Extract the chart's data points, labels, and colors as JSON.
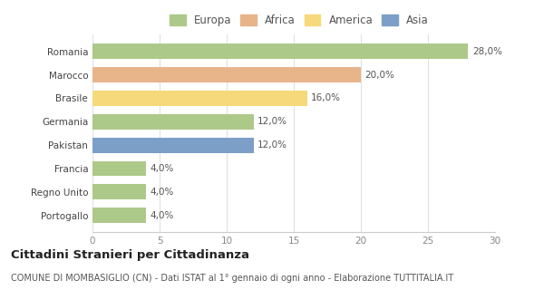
{
  "categories": [
    "Portogallo",
    "Regno Unito",
    "Francia",
    "Pakistan",
    "Germania",
    "Brasile",
    "Marocco",
    "Romania"
  ],
  "values": [
    4.0,
    4.0,
    4.0,
    12.0,
    12.0,
    16.0,
    20.0,
    28.0
  ],
  "colors": [
    "#adc98a",
    "#adc98a",
    "#adc98a",
    "#7b9fc7",
    "#adc98a",
    "#f5d97a",
    "#e8b48a",
    "#adc98a"
  ],
  "labels": [
    "4,0%",
    "4,0%",
    "4,0%",
    "12,0%",
    "12,0%",
    "16,0%",
    "20,0%",
    "28,0%"
  ],
  "legend_labels": [
    "Europa",
    "Africa",
    "America",
    "Asia"
  ],
  "legend_colors": [
    "#adc98a",
    "#e8b48a",
    "#f5d97a",
    "#7b9fc7"
  ],
  "xlim": [
    0,
    30
  ],
  "xticks": [
    0,
    5,
    10,
    15,
    20,
    25,
    30
  ],
  "title": "Cittadini Stranieri per Cittadinanza",
  "subtitle": "COMUNE DI MOMBASIGLIO (CN) - Dati ISTAT al 1° gennaio di ogni anno - Elaborazione TUTTITALIA.IT",
  "bg_color": "#ffffff",
  "plot_bg_color": "#ffffff",
  "grid_color": "#e0e0e0",
  "title_fontsize": 9.5,
  "subtitle_fontsize": 7,
  "bar_height": 0.65,
  "label_fontsize": 7.5,
  "ytick_fontsize": 7.5,
  "xtick_fontsize": 7.5
}
